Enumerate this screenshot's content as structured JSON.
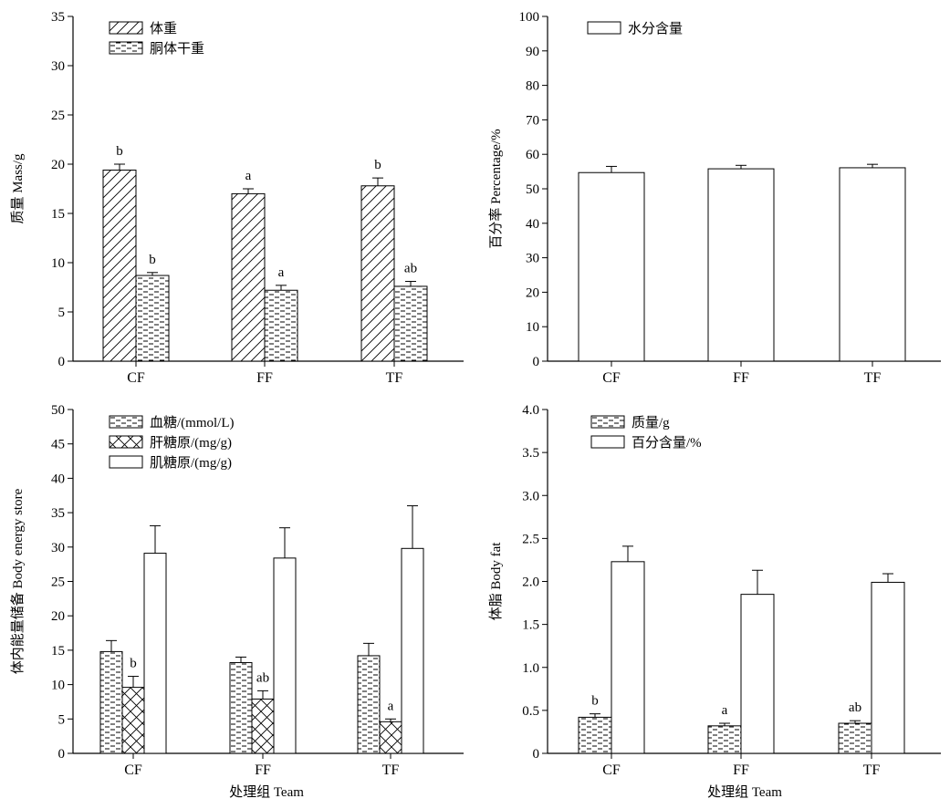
{
  "figure": {
    "shared_xlabel": "处理组 Team"
  },
  "chart_data": [
    {
      "id": "mass",
      "type": "bar",
      "title": "",
      "ylabel": "质量 Mass/g",
      "xlabel": "",
      "categories": [
        "CF",
        "FF",
        "TF"
      ],
      "ylim": [
        0,
        35
      ],
      "yticks": [
        0,
        5,
        10,
        15,
        20,
        25,
        30,
        35
      ],
      "ytick_labels": [
        "0",
        "5",
        "10",
        "15",
        "20",
        "25",
        "30",
        "35"
      ],
      "legend_position": "top-left",
      "series": [
        {
          "name": "体重",
          "pattern": "diagonal",
          "values": [
            19.4,
            17.0,
            17.8
          ],
          "errors": [
            0.6,
            0.5,
            0.8
          ],
          "labels": [
            "b",
            "a",
            "b"
          ]
        },
        {
          "name": "胴体干重",
          "pattern": "dashed",
          "values": [
            8.7,
            7.2,
            7.6
          ],
          "errors": [
            0.3,
            0.5,
            0.5
          ],
          "labels": [
            "b",
            "a",
            "ab"
          ]
        }
      ]
    },
    {
      "id": "water",
      "type": "bar",
      "title": "",
      "ylabel": "百分率 Percentage/%",
      "xlabel": "",
      "categories": [
        "CF",
        "FF",
        "TF"
      ],
      "ylim": [
        0,
        100
      ],
      "yticks": [
        0,
        10,
        20,
        30,
        40,
        50,
        60,
        70,
        80,
        90,
        100
      ],
      "ytick_labels": [
        "0",
        "10",
        "20",
        "30",
        "40",
        "50",
        "60",
        "70",
        "80",
        "90",
        "100"
      ],
      "legend_position": "top-left",
      "series": [
        {
          "name": "水分含量",
          "pattern": "none",
          "values": [
            54.7,
            55.8,
            56.1
          ],
          "errors": [
            1.8,
            1.0,
            1.0
          ],
          "labels": [
            "",
            "",
            ""
          ]
        }
      ]
    },
    {
      "id": "energy",
      "type": "bar",
      "title": "",
      "ylabel": "体内能量储备 Body energy store",
      "xlabel": "处理组 Team",
      "categories": [
        "CF",
        "FF",
        "TF"
      ],
      "ylim": [
        0,
        50
      ],
      "yticks": [
        0,
        5,
        10,
        15,
        20,
        25,
        30,
        35,
        40,
        45,
        50
      ],
      "ytick_labels": [
        "0",
        "5",
        "10",
        "15",
        "20",
        "25",
        "30",
        "35",
        "40",
        "45",
        "50"
      ],
      "legend_position": "top-left",
      "series": [
        {
          "name": "血糖/(mmol/L)",
          "pattern": "dashed",
          "values": [
            14.8,
            13.2,
            14.2
          ],
          "errors": [
            1.6,
            0.8,
            1.8
          ],
          "labels": [
            "",
            "",
            ""
          ]
        },
        {
          "name": "肝糖原/(mg/g)",
          "pattern": "crosshatch",
          "values": [
            9.6,
            7.9,
            4.6
          ],
          "errors": [
            1.6,
            1.2,
            0.4
          ],
          "labels": [
            "b",
            "ab",
            "a"
          ]
        },
        {
          "name": "肌糖原/(mg/g)",
          "pattern": "none",
          "values": [
            29.1,
            28.4,
            29.8
          ],
          "errors": [
            4.0,
            4.4,
            6.2
          ],
          "labels": [
            "",
            "",
            ""
          ]
        }
      ]
    },
    {
      "id": "fat",
      "type": "bar",
      "title": "",
      "ylabel": "体脂 Body fat",
      "xlabel": "处理组 Team",
      "categories": [
        "CF",
        "FF",
        "TF"
      ],
      "ylim": [
        0,
        4.0
      ],
      "yticks": [
        0,
        0.5,
        1.0,
        1.5,
        2.0,
        2.5,
        3.0,
        3.5,
        4.0
      ],
      "ytick_labels": [
        "0",
        "0.5",
        "1.0",
        "1.5",
        "2.0",
        "2.5",
        "3.0",
        "3.5",
        "4.0"
      ],
      "legend_position": "top-left",
      "series": [
        {
          "name": "质量/g",
          "pattern": "dashed",
          "values": [
            0.42,
            0.32,
            0.35
          ],
          "errors": [
            0.04,
            0.03,
            0.03
          ],
          "labels": [
            "b",
            "a",
            "ab"
          ]
        },
        {
          "name": "百分含量/%",
          "pattern": "none",
          "values": [
            2.23,
            1.85,
            1.99
          ],
          "errors": [
            0.18,
            0.28,
            0.1
          ],
          "labels": [
            "",
            "",
            ""
          ]
        }
      ]
    }
  ]
}
